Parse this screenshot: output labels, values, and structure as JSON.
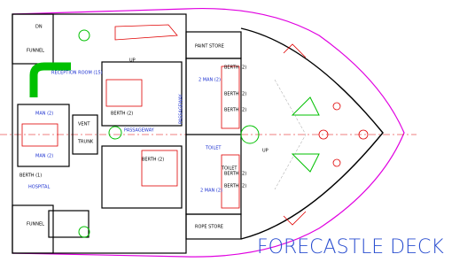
{
  "title": "FORECASTLE DECK",
  "rooms": [
    "FUNNEL",
    "FUNNEL",
    "RECEPTION ROOM (15)",
    "PAINT STORE",
    "ROPE STORE",
    "HOSPITAL",
    "VENT",
    "TRUNK",
    "PASSAGEWAY",
    "PASSAGEWAY",
    "BERTH (2)",
    "BERTH (2)",
    "BERTH (2)",
    "BERTH (2)",
    "BERTH (2)",
    "BERTH (2)",
    "BERTH (2)",
    "BERTH (1)",
    "2 MAN (2)",
    "2 MAN (2)",
    "MAN (2)",
    "MAN (2)",
    "TOILET",
    "TOILET",
    "DN",
    "UP",
    "UP"
  ]
}
